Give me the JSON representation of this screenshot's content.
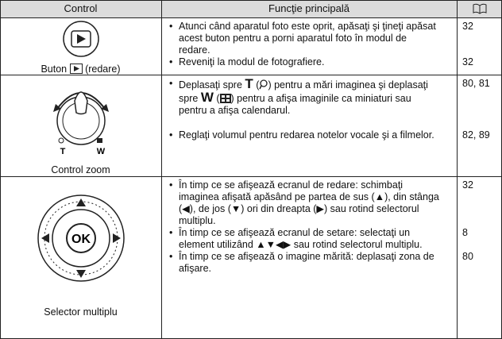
{
  "header": {
    "control": "Control",
    "function": "Funcţie principală"
  },
  "rows": [
    {
      "control": {
        "label_before": "Buton",
        "label_after": "(redare)"
      },
      "items": [
        {
          "text": "Atunci când aparatul foto este oprit, apăsaţi şi ţineţi apăsat acest buton pentru a porni aparatul foto în modul de redare.",
          "page": "32"
        },
        {
          "text": "Reveniţi la modul de fotografiere.",
          "page": "32"
        }
      ]
    },
    {
      "control": {
        "label": "Control zoom",
        "t": "T",
        "w": "W"
      },
      "items": [
        {
          "parts": [
            "Deplasaţi spre",
            "T",
            "(",
            ") pentru a mări imaginea şi deplasaţi spre",
            "W",
            "(",
            ") pentru a afişa imaginile ca miniaturi sau pentru a afişa calendarul."
          ],
          "page": "80, 81"
        },
        {
          "text": "Reglaţi volumul pentru redarea notelor vocale şi a filmelor.",
          "page": "82, 89"
        }
      ]
    },
    {
      "control": {
        "label": "Selector multiplu",
        "ok": "OK"
      },
      "items": [
        {
          "text": "În timp ce se afişează ecranul de redare: schimbaţi imaginea afişată apăsând pe partea de sus (▲), din stânga (◀), de jos (▼) ori din dreapta (▶) sau rotind selectorul multiplu.",
          "page": "32"
        },
        {
          "text": "În timp ce se afişează ecranul de setare: selectaţi un element utilizând ▲▼◀▶ sau rotind selectorul multiplu.",
          "page": "8"
        },
        {
          "text": "În timp ce se afişează o imagine mărită: deplasaţi zona de afişare.",
          "page": "80"
        }
      ]
    }
  ]
}
